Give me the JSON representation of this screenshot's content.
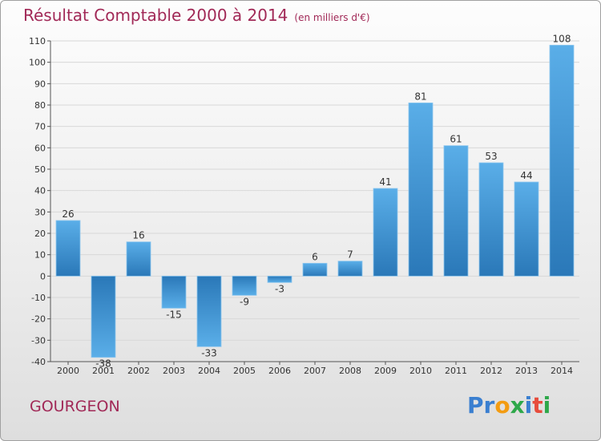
{
  "header": {
    "title": "Résultat Comptable 2000 à 2014",
    "subtitle": "(en milliers d'€)"
  },
  "footer": {
    "commune": "GOURGEON",
    "logo": "Proxiti"
  },
  "colors": {
    "title": "#a12957",
    "bar_light": "#5aaee8",
    "bar_dark": "#2a78b8",
    "grid": "#d8d8d8"
  },
  "chart_data": {
    "type": "bar",
    "title": "Résultat Comptable 2000 à 2014",
    "subtitle": "(en milliers d'€)",
    "xlabel": "",
    "ylabel": "",
    "categories": [
      "2000",
      "2001",
      "2002",
      "2003",
      "2004",
      "2005",
      "2006",
      "2007",
      "2008",
      "2009",
      "2010",
      "2011",
      "2012",
      "2013",
      "2014"
    ],
    "values": [
      26,
      -38,
      16,
      -15,
      -33,
      -9,
      -3,
      6,
      7,
      41,
      81,
      61,
      53,
      44,
      108
    ],
    "ylim": [
      -40,
      110
    ],
    "yticks": [
      -40,
      -30,
      -20,
      -10,
      0,
      10,
      20,
      30,
      40,
      50,
      60,
      70,
      80,
      90,
      100,
      110
    ],
    "grid": true,
    "legend": "none"
  }
}
